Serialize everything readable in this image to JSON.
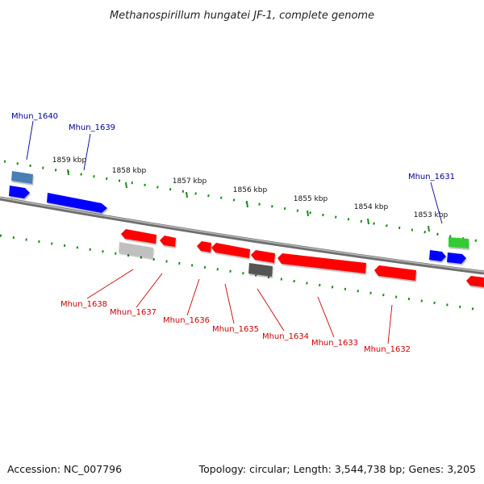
{
  "title": "Methanospirillum hungatei JF-1, complete genome",
  "accession_text": "Accession: NC_007796",
  "topology_text": "Topology: circular; Length: 3,544,738 bp; Genes: 3,205",
  "colors": {
    "backbone": "#808080",
    "tick": "#1a8c1a",
    "forward_gene": "#0000ff",
    "reverse_gene": "#ff0000",
    "forward_label": "#00009c",
    "reverse_label": "#cc0000",
    "steelblue_gene": "#4a7fb5",
    "green_gene": "#33cc33",
    "silver_gene": "#c0c0c0",
    "dark_gene": "#555555"
  },
  "scale_ticks": [
    {
      "label": "1859 kbp"
    },
    {
      "label": "1858 kbp"
    },
    {
      "label": "1857 kbp"
    },
    {
      "label": "1856 kbp"
    },
    {
      "label": "1855 kbp"
    },
    {
      "label": "1854 kbp"
    },
    {
      "label": "1853 kbp"
    }
  ],
  "gene_labels": [
    {
      "name": "Mhun_1640",
      "strand": "forward"
    },
    {
      "name": "Mhun_1639",
      "strand": "forward"
    },
    {
      "name": "Mhun_1631",
      "strand": "forward"
    },
    {
      "name": "Mhun_1638",
      "strand": "reverse"
    },
    {
      "name": "Mhun_1637",
      "strand": "reverse"
    },
    {
      "name": "Mhun_1636",
      "strand": "reverse"
    },
    {
      "name": "Mhun_1635",
      "strand": "reverse"
    },
    {
      "name": "Mhun_1634",
      "strand": "reverse"
    },
    {
      "name": "Mhun_1633",
      "strand": "reverse"
    },
    {
      "name": "Mhun_1632",
      "strand": "reverse"
    }
  ]
}
